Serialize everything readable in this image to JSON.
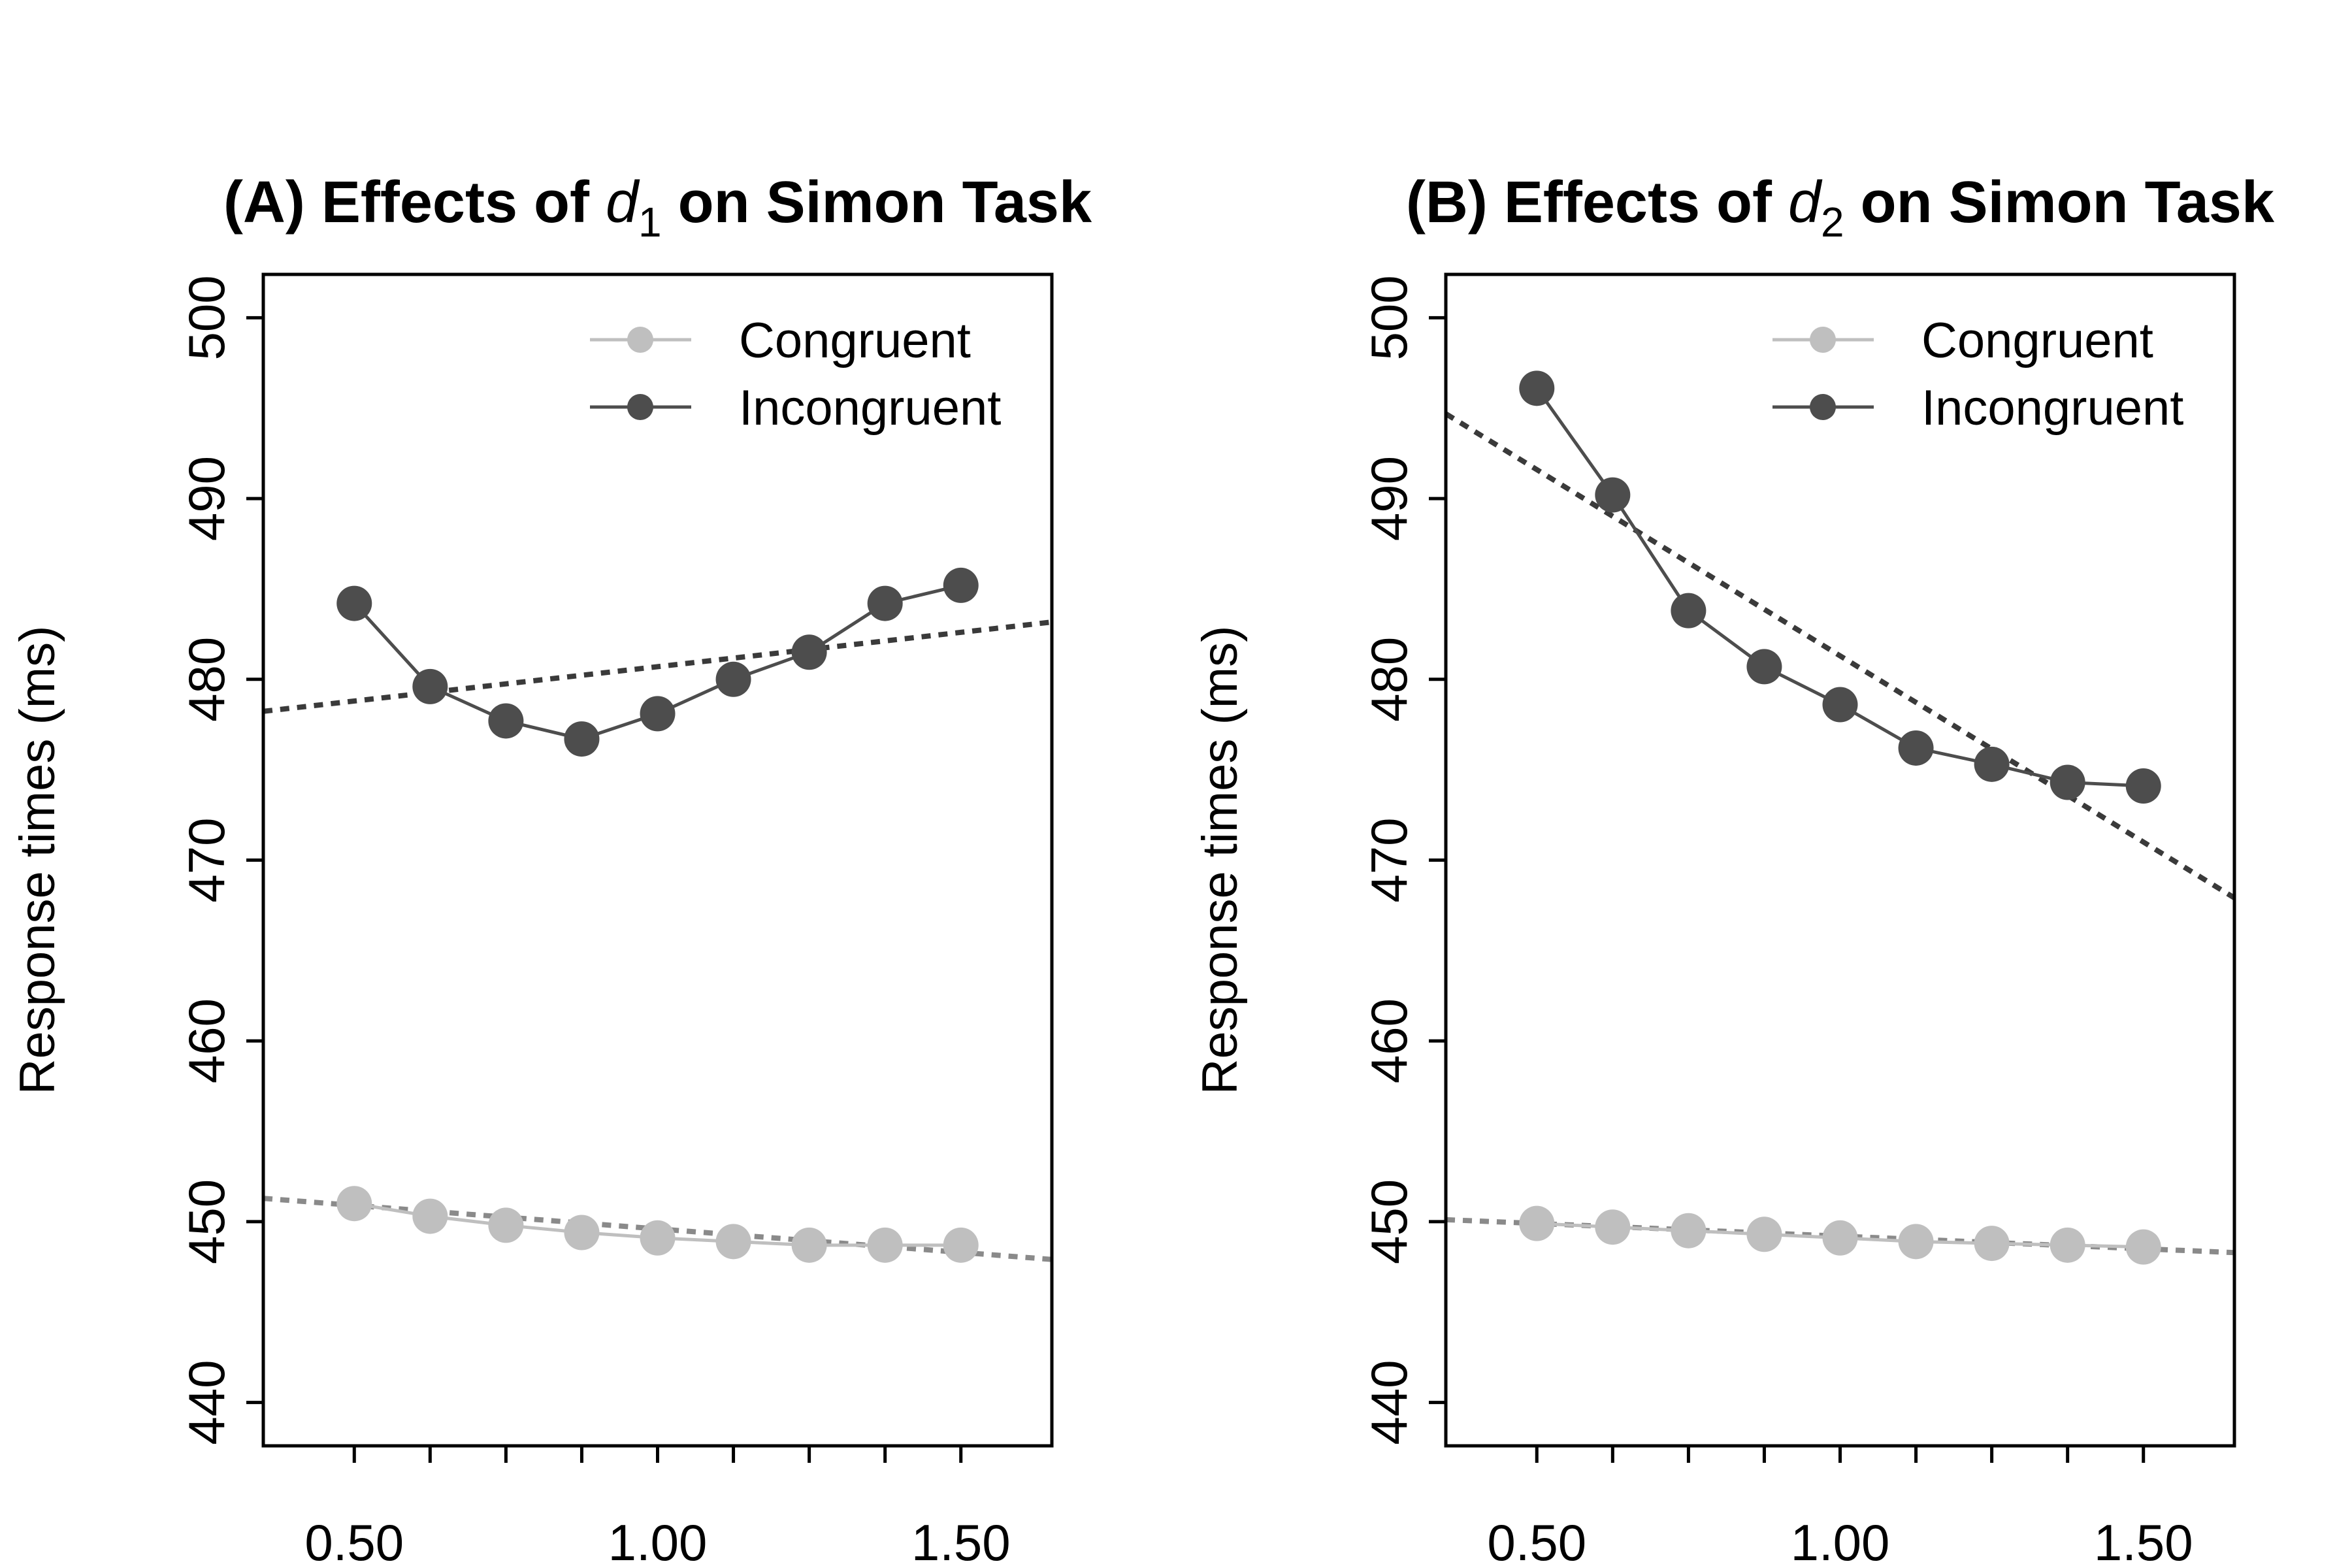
{
  "chart_data": [
    {
      "type": "line",
      "title": "(A) Effects of d1 on Simon Task",
      "title_parts": {
        "prefix": "(A) Effects of ",
        "var": "d",
        "sub": "1",
        "suffix": " on Simon Task"
      },
      "xlabel": "",
      "ylabel": "Response times (ms)",
      "xlim": [
        0.35,
        1.65
      ],
      "ylim": [
        437.6,
        502.4
      ],
      "x_ticks": [
        0.5,
        1.0,
        1.5
      ],
      "x_tick_labels": [
        "0.50",
        "1.00",
        "1.50"
      ],
      "x_minor_ticks": [
        0.5,
        0.625,
        0.75,
        0.875,
        1.0,
        1.125,
        1.25,
        1.375,
        1.5
      ],
      "y_ticks": [
        440,
        450,
        460,
        470,
        480,
        490,
        500
      ],
      "y_tick_labels": [
        "440",
        "450",
        "460",
        "470",
        "480",
        "490",
        "500"
      ],
      "legend": {
        "position": "top-right",
        "entries": [
          "Congruent",
          "Incongruent"
        ]
      },
      "x": [
        0.5,
        0.625,
        0.75,
        0.875,
        1.0,
        1.125,
        1.25,
        1.375,
        1.5
      ],
      "series": [
        {
          "name": "Congruent",
          "color": "#bfbfbf",
          "values": [
            451.0,
            450.3,
            449.8,
            449.4,
            449.1,
            448.9,
            448.7,
            448.7,
            448.7
          ],
          "trend": {
            "color": "#8a8a8a",
            "intercept": 452.2,
            "slope": -2.6
          }
        },
        {
          "name": "Incongruent",
          "color": "#4d4d4d",
          "values": [
            484.2,
            479.6,
            477.7,
            476.7,
            478.1,
            480.0,
            481.5,
            484.2,
            485.2
          ],
          "trend": {
            "color": "#3a3a3a",
            "intercept": 476.9,
            "slope": 3.8
          }
        }
      ]
    },
    {
      "type": "line",
      "title": "(B) Effects of d2 on Simon Task",
      "title_parts": {
        "prefix": "(B) Effects of ",
        "var": "d",
        "sub": "2",
        "suffix": " on Simon Task"
      },
      "xlabel": "",
      "ylabel": "Response times (ms)",
      "xlim": [
        0.35,
        1.65
      ],
      "ylim": [
        437.6,
        502.4
      ],
      "x_ticks": [
        0.5,
        1.0,
        1.5
      ],
      "x_tick_labels": [
        "0.50",
        "1.00",
        "1.50"
      ],
      "x_minor_ticks": [
        0.5,
        0.625,
        0.75,
        0.875,
        1.0,
        1.125,
        1.25,
        1.375,
        1.5
      ],
      "y_ticks": [
        440,
        450,
        460,
        470,
        480,
        490,
        500
      ],
      "y_tick_labels": [
        "440",
        "450",
        "460",
        "470",
        "480",
        "490",
        "500"
      ],
      "legend": {
        "position": "top-right",
        "entries": [
          "Congruent",
          "Incongruent"
        ]
      },
      "x": [
        0.5,
        0.625,
        0.75,
        0.875,
        1.0,
        1.125,
        1.25,
        1.375,
        1.5
      ],
      "series": [
        {
          "name": "Congruent",
          "color": "#bfbfbf",
          "values": [
            449.9,
            449.7,
            449.5,
            449.3,
            449.1,
            448.9,
            448.8,
            448.7,
            448.6
          ],
          "trend": {
            "color": "#8a8a8a",
            "intercept": 450.6,
            "slope": -1.4
          }
        },
        {
          "name": "Incongruent",
          "color": "#4d4d4d",
          "values": [
            496.1,
            490.2,
            483.8,
            480.7,
            478.6,
            476.2,
            475.3,
            474.3,
            474.1
          ],
          "trend": {
            "color": "#3a3a3a",
            "intercept": 501.9,
            "slope": -20.6
          }
        }
      ]
    }
  ]
}
